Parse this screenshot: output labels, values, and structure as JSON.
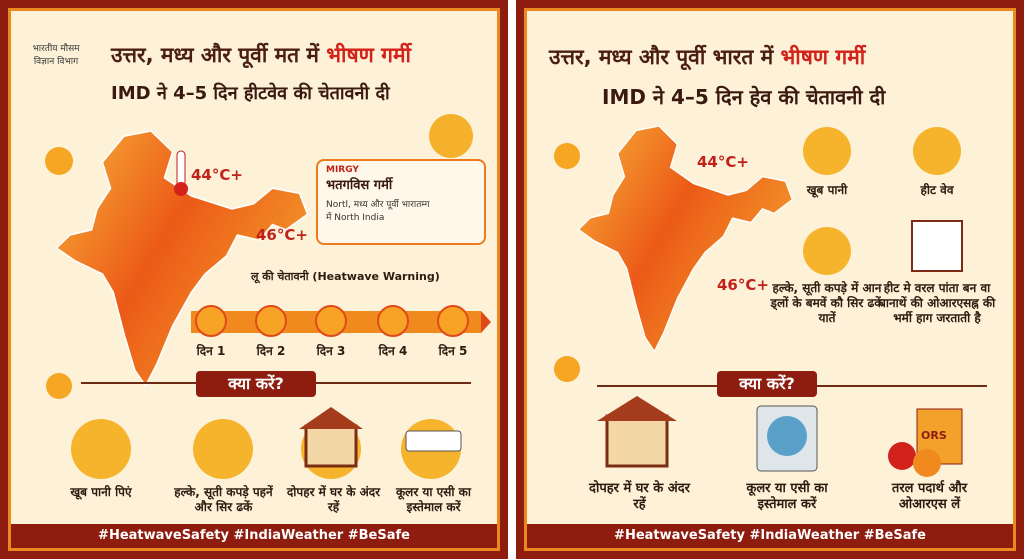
{
  "left": {
    "logo_text": "भारतीय मौसम विज्ञान विभाग",
    "title": {
      "main": "उत्तर, मध्य और पूर्वी मत में",
      "highlight": "भीषण गर्मी"
    },
    "subtitle": "IMD ने 4–5 दिन हीटवेव की चेतावनी दी",
    "temps": [
      "44°C+",
      "46°C+"
    ],
    "alert_box": {
      "tag": "MIRGY",
      "heading": "भतगविस गर्मी",
      "body": "Nortl, मध्य और पूर्वी भारातम्ग में North India"
    },
    "warning": "लू की चेतावनी (Heatwave Warning)",
    "days": [
      "दिन 1",
      "दिन 2",
      "दिन 3",
      "दिन 4",
      "दिन 5"
    ],
    "section": "क्या करें?",
    "tips": [
      "खूब पानी पिएं",
      "हल्के, सूती कपड़े पहनें और सिर ढकें",
      "दोपहर में घर के अंदर रहें",
      "कूलर या एसी का इस्तेमाल करें"
    ],
    "hashtags": "#HeatwaveSafety #IndiaWeather #BeSafe"
  },
  "right": {
    "title": {
      "main": "उत्तर, मध्य और पूर्वी भारत में",
      "highlight": "भीषण गर्मी"
    },
    "subtitle": "IMD ने 4–5 दिन हेव की चेतावनी दी",
    "temps": [
      "44°C+",
      "46°C+"
    ],
    "items": [
      "खूब पानी",
      "हीट वेव",
      "हल्के, सूती कपड़े में आन ड्लों के बमवें कौ सिर ढकें यातें",
      "हीट मे वरल पांता बन वा घानाथें की ओआरएसह्न की भर्मी हाग जरताती है"
    ],
    "section": "क्या करें?",
    "tips": [
      "दोपहर में घर के अंदर रहें",
      "कूलर या एसी का इस्तेमाल करें",
      "तरल पदार्थ और ओआरएस लें"
    ],
    "ors_label": "ORS",
    "hashtags": "#HeatwaveSafety #IndiaWeather #BeSafe"
  }
}
